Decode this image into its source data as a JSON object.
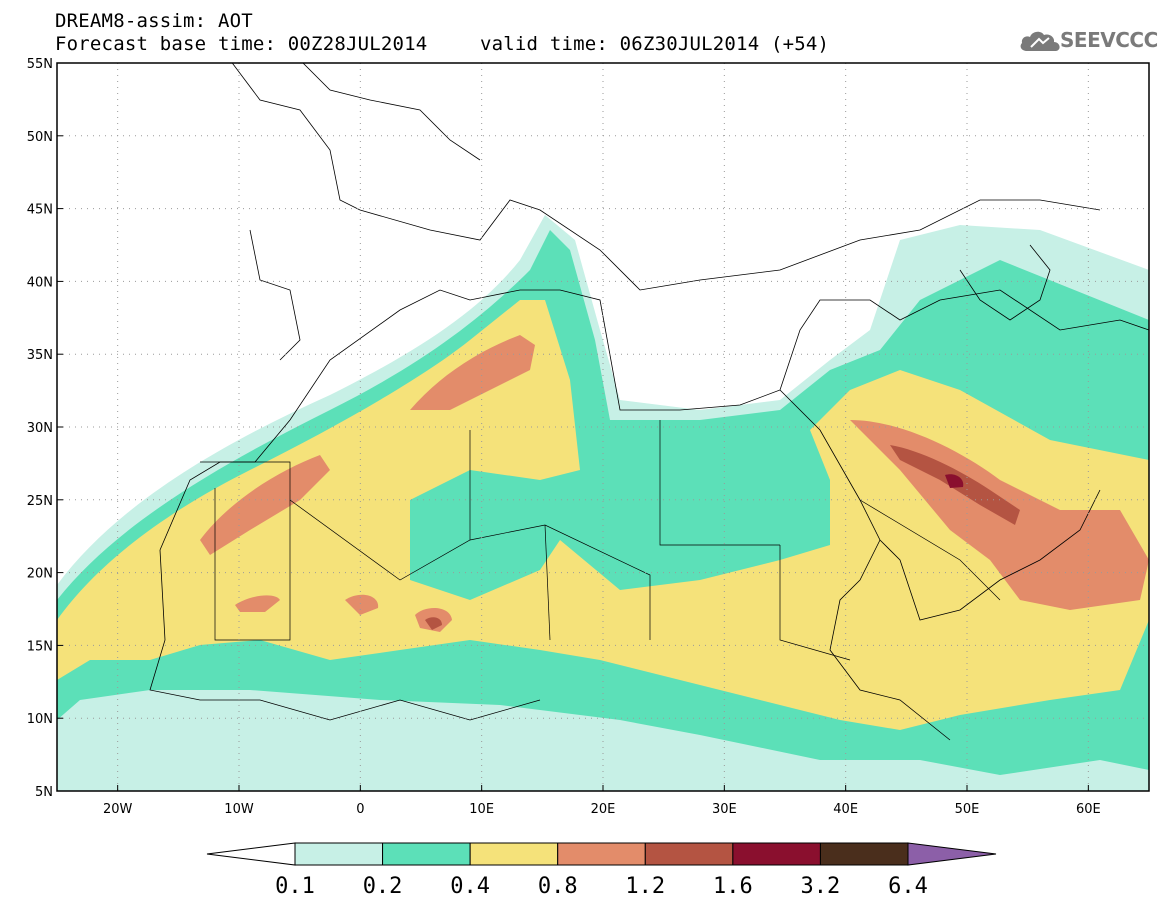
{
  "header": {
    "product": "DREAM8-assim: AOT",
    "base_time": "Forecast base time: 00Z28JUL2014",
    "valid_time": "valid time: 06Z30JUL2014 (+54)"
  },
  "logo": {
    "text": "SEEVCCC",
    "icon": "cloud-icon"
  },
  "map": {
    "lon_range": [
      -25,
      65
    ],
    "lat_range": [
      5,
      55
    ],
    "lat_ticks": [
      "55N",
      "50N",
      "45N",
      "40N",
      "35N",
      "30N",
      "25N",
      "20N",
      "15N",
      "10N",
      "5N"
    ],
    "lon_ticks": [
      "20W",
      "10W",
      "0",
      "10E",
      "20E",
      "30E",
      "40E",
      "50E",
      "60E"
    ],
    "grid": "dotted"
  },
  "colorbar": {
    "levels": [
      "0.1",
      "0.2",
      "0.4",
      "0.8",
      "1.2",
      "1.6",
      "3.2",
      "6.4"
    ],
    "colors": [
      "#ffffff",
      "#c7f0e6",
      "#5ce0b8",
      "#f5e27a",
      "#e38c6a",
      "#b45442",
      "#8a0f2e",
      "#4a2e1c",
      "#8c5fa8"
    ]
  }
}
